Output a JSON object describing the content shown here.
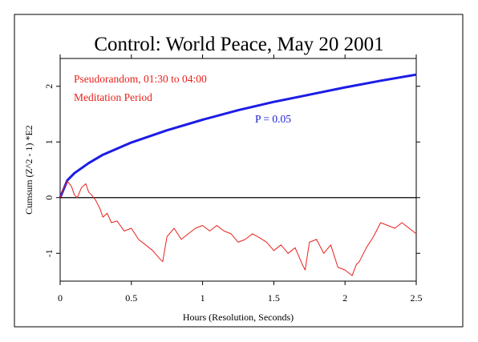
{
  "chart_data": {
    "type": "line",
    "title": "Control: World Peace, May 20 2001",
    "xlabel": "Hours (Resolution, Seconds)",
    "ylabel": "Cumsum (Z^2 - 1) *E2",
    "xlim": [
      0,
      2.5
    ],
    "ylim": [
      -1.5,
      2.5
    ],
    "x_ticks": [
      0,
      0.5,
      1,
      1.5,
      2,
      2.5
    ],
    "x_tick_labels": [
      "0",
      "0.5",
      "1",
      "1.5",
      "2",
      "2.5"
    ],
    "y_ticks": [
      -1,
      0,
      1,
      2
    ],
    "y_tick_labels": [
      "-1",
      "0",
      "1",
      "2"
    ],
    "grid": false,
    "annotations": [
      {
        "id": "label_source",
        "text": "Pseudorandom, 01:30 to 04:00",
        "color": "#e8211c"
      },
      {
        "id": "label_period",
        "text": "Meditation Period",
        "color": "#e8211c"
      },
      {
        "id": "label_p",
        "text": "P = 0.05",
        "color": "#1a1ad6"
      }
    ],
    "reference_line": {
      "y": 0,
      "color": "#000000"
    },
    "series": [
      {
        "role": "p05-envelope",
        "color": "#1c1ce6",
        "x": [
          0,
          0.05,
          0.1,
          0.2,
          0.3,
          0.5,
          0.75,
          1.0,
          1.25,
          1.5,
          1.75,
          2.0,
          2.25,
          2.5
        ],
        "y": [
          0,
          0.31,
          0.44,
          0.62,
          0.77,
          0.99,
          1.21,
          1.4,
          1.57,
          1.72,
          1.85,
          1.98,
          2.1,
          2.21
        ]
      },
      {
        "role": "cumulative-deviation",
        "color": "#e8211c",
        "x": [
          0,
          0.02,
          0.05,
          0.08,
          0.1,
          0.12,
          0.15,
          0.18,
          0.2,
          0.22,
          0.25,
          0.28,
          0.3,
          0.33,
          0.36,
          0.4,
          0.45,
          0.5,
          0.55,
          0.6,
          0.65,
          0.7,
          0.72,
          0.75,
          0.8,
          0.85,
          0.9,
          0.95,
          1.0,
          1.05,
          1.1,
          1.15,
          1.2,
          1.25,
          1.3,
          1.35,
          1.4,
          1.45,
          1.5,
          1.55,
          1.6,
          1.65,
          1.7,
          1.72,
          1.75,
          1.8,
          1.85,
          1.9,
          1.95,
          2.0,
          2.05,
          2.08,
          2.1,
          2.15,
          2.2,
          2.25,
          2.3,
          2.35,
          2.4,
          2.45,
          2.5
        ],
        "y": [
          0,
          0.15,
          0.3,
          0.2,
          0.05,
          0.0,
          0.18,
          0.25,
          0.1,
          0.05,
          -0.05,
          -0.2,
          -0.35,
          -0.28,
          -0.45,
          -0.42,
          -0.6,
          -0.55,
          -0.75,
          -0.85,
          -0.95,
          -1.1,
          -1.15,
          -0.7,
          -0.55,
          -0.75,
          -0.65,
          -0.55,
          -0.5,
          -0.6,
          -0.5,
          -0.6,
          -0.65,
          -0.8,
          -0.75,
          -0.65,
          -0.72,
          -0.8,
          -0.95,
          -0.85,
          -1.0,
          -0.9,
          -1.2,
          -1.3,
          -0.8,
          -0.75,
          -1.0,
          -0.85,
          -1.25,
          -1.3,
          -1.4,
          -1.2,
          -1.15,
          -0.9,
          -0.7,
          -0.45,
          -0.5,
          -0.55,
          -0.45,
          -0.55,
          -0.65
        ]
      }
    ]
  }
}
